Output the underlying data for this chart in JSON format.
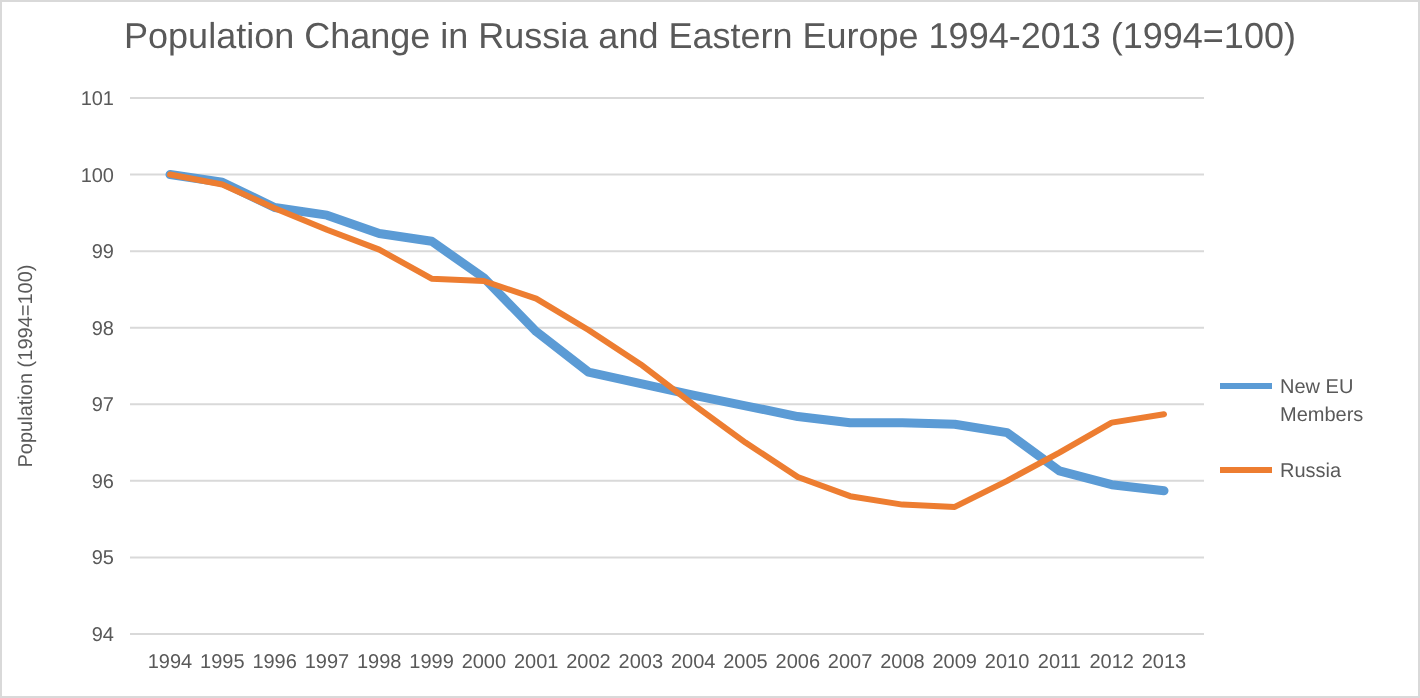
{
  "chart_data": {
    "type": "line",
    "title": "Population Change in Russia and Eastern Europe 1994-2013 (1994=100)",
    "ylabel": "Population (1994=100)",
    "categories": [
      "1994",
      "1995",
      "1996",
      "1997",
      "1998",
      "1999",
      "2000",
      "2001",
      "2002",
      "2003",
      "2004",
      "2005",
      "2006",
      "2007",
      "2008",
      "2009",
      "2010",
      "2011",
      "2012",
      "2013"
    ],
    "series": [
      {
        "name": "New EU Members",
        "color": "#5b9bd5",
        "values": [
          100,
          99.9,
          99.57,
          99.47,
          99.23,
          99.13,
          98.65,
          97.95,
          97.42,
          97.27,
          97.12,
          96.98,
          96.84,
          96.76,
          96.76,
          96.74,
          96.63,
          96.13,
          95.95,
          95.87
        ]
      },
      {
        "name": "Russia",
        "color": "#ed7d31",
        "values": [
          100,
          99.87,
          99.56,
          99.28,
          99.02,
          98.64,
          98.61,
          98.38,
          97.97,
          97.52,
          97.0,
          96.5,
          96.05,
          95.8,
          95.69,
          95.66,
          96.0,
          96.37,
          96.76,
          96.87
        ]
      }
    ],
    "ylim": [
      94,
      101
    ],
    "yticks": [
      94,
      95,
      96,
      97,
      98,
      99,
      100,
      101
    ],
    "grid": "y",
    "legend": "right"
  }
}
